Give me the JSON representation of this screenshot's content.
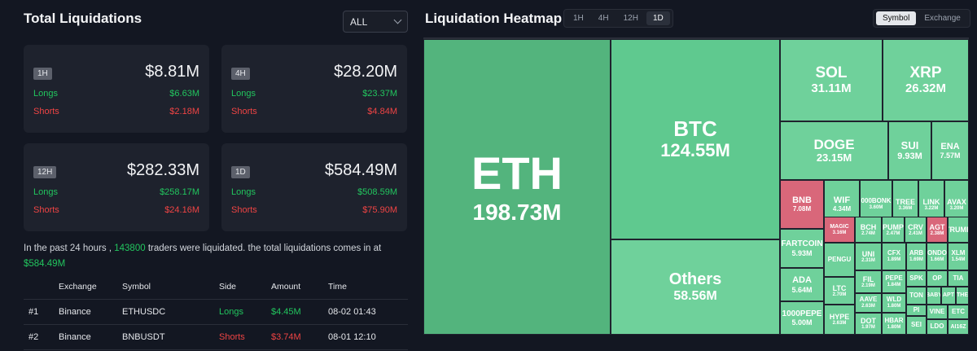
{
  "left": {
    "title": "Total Liquidations",
    "filter": {
      "selected": "ALL"
    },
    "cards": [
      {
        "period": "1H",
        "total": "$8.81M",
        "longs_label": "Longs",
        "longs": "$6.63M",
        "shorts_label": "Shorts",
        "shorts": "$2.18M"
      },
      {
        "period": "4H",
        "total": "$28.20M",
        "longs_label": "Longs",
        "longs": "$23.37M",
        "shorts_label": "Shorts",
        "shorts": "$4.84M"
      },
      {
        "period": "12H",
        "total": "$282.33M",
        "longs_label": "Longs",
        "longs": "$258.17M",
        "shorts_label": "Shorts",
        "shorts": "$24.16M"
      },
      {
        "period": "1D",
        "total": "$584.49M",
        "longs_label": "Longs",
        "longs": "$508.59M",
        "shorts_label": "Shorts",
        "shorts": "$75.90M"
      }
    ],
    "summary": {
      "prefix": "In the past 24 hours ,",
      "traders": "143800",
      "middle": "traders were liquidated. the total liquidations comes in at",
      "amount": "$584.49M"
    },
    "table": {
      "headers": [
        "",
        "Exchange",
        "Symbol",
        "Side",
        "Amount",
        "Time"
      ],
      "rows": [
        {
          "rank": "#1",
          "exchange": "Binance",
          "symbol": "ETHUSDC",
          "side": "Longs",
          "amount": "$4.45M",
          "time": "08-02 01:43"
        },
        {
          "rank": "#2",
          "exchange": "Binance",
          "symbol": "BNBUSDT",
          "side": "Shorts",
          "amount": "$3.74M",
          "time": "08-01 12:10"
        }
      ]
    }
  },
  "right": {
    "title": "Liquidation Heatmap",
    "period_tabs": [
      "1H",
      "4H",
      "12H",
      "1D"
    ],
    "period_active": "1D",
    "view_tabs": [
      "Symbol",
      "Exchange"
    ],
    "view_active": "Symbol",
    "colors": {
      "green_dark": "#53b47d",
      "green": "#5fc98f",
      "green_light": "#6fd19b",
      "red": "#d9677a"
    },
    "tiles": [
      {
        "name": "ETH",
        "value": "198.73M",
        "color": "#53b47d"
      },
      {
        "name": "BTC",
        "value": "124.55M",
        "color": "#5fc98f"
      },
      {
        "name": "Others",
        "value": "58.56M",
        "color": "#6fd19b"
      },
      {
        "name": "SOL",
        "value": "31.11M",
        "color": "#6fd19b"
      },
      {
        "name": "XRP",
        "value": "26.32M",
        "color": "#6fd19b"
      },
      {
        "name": "DOGE",
        "value": "23.15M",
        "color": "#6fd19b"
      },
      {
        "name": "SUI",
        "value": "9.93M",
        "color": "#6fd19b"
      },
      {
        "name": "ENA",
        "value": "7.57M",
        "color": "#6fd19b"
      },
      {
        "name": "BNB",
        "value": "7.08M",
        "color": "#d9677a"
      },
      {
        "name": "WIF",
        "value": "4.34M",
        "color": "#6fd19b"
      },
      {
        "name": "000BONK",
        "value": "3.60M",
        "color": "#6fd19b"
      },
      {
        "name": "TREE",
        "value": "3.36M",
        "color": "#6fd19b"
      },
      {
        "name": "LINK",
        "value": "3.22M",
        "color": "#6fd19b"
      },
      {
        "name": "AVAX",
        "value": "3.20M",
        "color": "#6fd19b"
      },
      {
        "name": "FARTCOIN",
        "value": "5.93M",
        "color": "#6fd19b"
      },
      {
        "name": "MAGIC",
        "value": "3.16M",
        "color": "#d9677a"
      },
      {
        "name": "BCH",
        "value": "2.74M",
        "color": "#6fd19b"
      },
      {
        "name": "PUMP",
        "value": "2.47M",
        "color": "#6fd19b"
      },
      {
        "name": "CRV",
        "value": "2.41M",
        "color": "#6fd19b"
      },
      {
        "name": "AGT",
        "value": "2.38M",
        "color": "#d9677a"
      },
      {
        "name": "TRUMP",
        "value": "",
        "color": "#6fd19b"
      },
      {
        "name": "ADA",
        "value": "5.64M",
        "color": "#6fd19b"
      },
      {
        "name": "PENGU",
        "value": "",
        "color": "#6fd19b"
      },
      {
        "name": "UNI",
        "value": "2.31M",
        "color": "#6fd19b"
      },
      {
        "name": "CFX",
        "value": "1.89M",
        "color": "#6fd19b"
      },
      {
        "name": "ARB",
        "value": "1.69M",
        "color": "#6fd19b"
      },
      {
        "name": "ONDO",
        "value": "1.66M",
        "color": "#6fd19b"
      },
      {
        "name": "XLM",
        "value": "1.54M",
        "color": "#6fd19b"
      },
      {
        "name": "FIL",
        "value": "2.19M",
        "color": "#6fd19b"
      },
      {
        "name": "PEPE",
        "value": "1.84M",
        "color": "#6fd19b"
      },
      {
        "name": "SPK",
        "value": "",
        "color": "#6fd19b"
      },
      {
        "name": "OP",
        "value": "",
        "color": "#6fd19b"
      },
      {
        "name": "TIA",
        "value": "",
        "color": "#6fd19b"
      },
      {
        "name": "1000PEPE",
        "value": "5.00M",
        "color": "#6fd19b"
      },
      {
        "name": "LTC",
        "value": "2.70M",
        "color": "#6fd19b"
      },
      {
        "name": "WLD",
        "value": "1.80M",
        "color": "#6fd19b"
      },
      {
        "name": "TON",
        "value": "",
        "color": "#6fd19b"
      },
      {
        "name": "BABY",
        "value": "",
        "color": "#6fd19b"
      },
      {
        "name": "APT",
        "value": "",
        "color": "#6fd19b"
      },
      {
        "name": "THE",
        "value": "",
        "color": "#6fd19b"
      },
      {
        "name": "AAVE",
        "value": "2.63M",
        "color": "#6fd19b"
      },
      {
        "name": "PI",
        "value": "",
        "color": "#6fd19b"
      },
      {
        "name": "VINE",
        "value": "",
        "color": "#6fd19b"
      },
      {
        "name": "ETC",
        "value": "",
        "color": "#6fd19b"
      },
      {
        "name": "HYPE",
        "value": "2.63M",
        "color": "#6fd19b"
      },
      {
        "name": "DOT",
        "value": "1.97M",
        "color": "#6fd19b"
      },
      {
        "name": "HBAR",
        "value": "1.80M",
        "color": "#6fd19b"
      },
      {
        "name": "SEI",
        "value": "",
        "color": "#6fd19b"
      },
      {
        "name": "LDO",
        "value": "",
        "color": "#6fd19b"
      },
      {
        "name": "AI16Z",
        "value": "",
        "color": "#6fd19b"
      }
    ]
  }
}
